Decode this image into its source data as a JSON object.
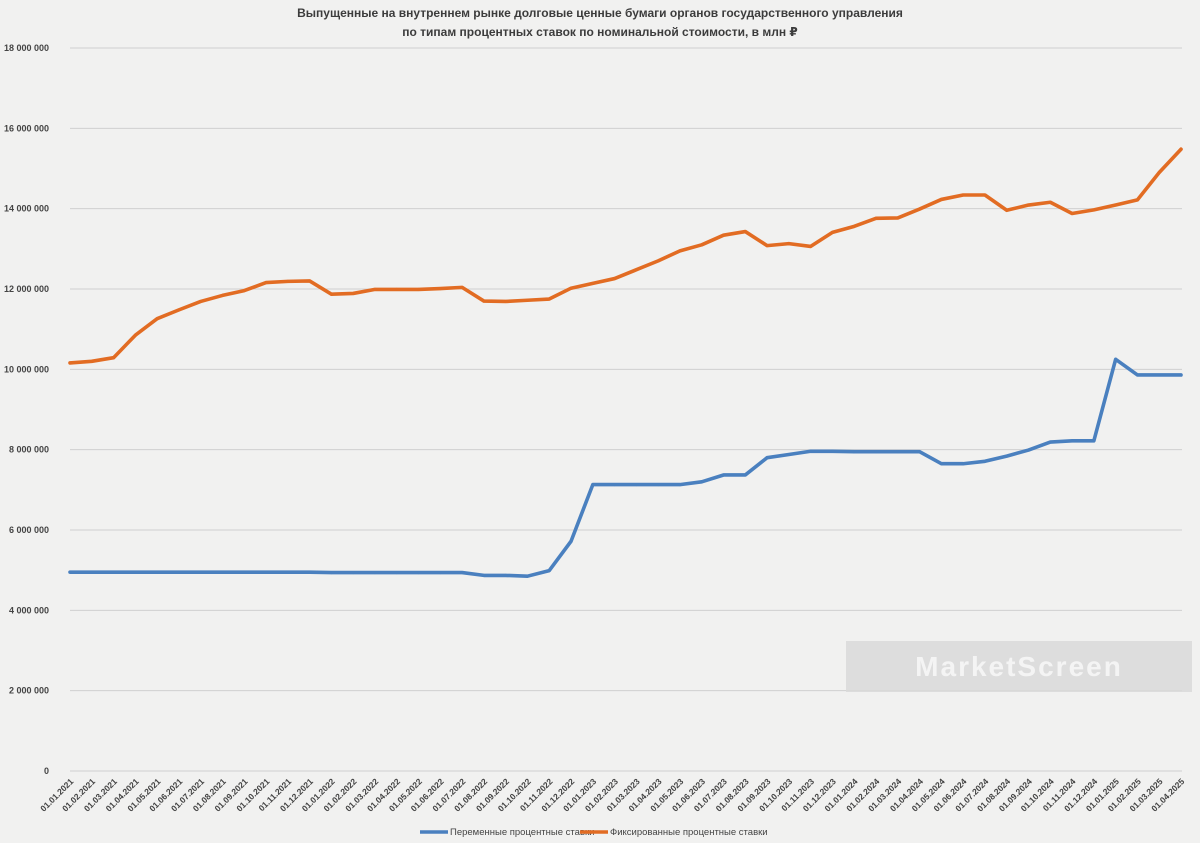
{
  "chart_data": {
    "type": "line",
    "title": "Выпущенные на внутреннем рынке долговые ценные бумаги органов государственного управления",
    "subtitle": "по типам процентных ставок по номинальной стоимости, в млн ₽",
    "xlabel": "",
    "ylabel": "",
    "ylim": [
      0,
      18000000
    ],
    "grid": true,
    "legend_position": "bottom",
    "y_ticks": [
      "0",
      "2 000 000",
      "4 000 000",
      "6 000 000",
      "8 000 000",
      "10 000 000",
      "12 000 000",
      "14 000 000",
      "16 000 000",
      "18 000 000"
    ],
    "categories": [
      "01.01.2021",
      "01.02.2021",
      "01.03.2021",
      "01.04.2021",
      "01.05.2021",
      "01.06.2021",
      "01.07.2021",
      "01.08.2021",
      "01.09.2021",
      "01.10.2021",
      "01.11.2021",
      "01.12.2021",
      "01.01.2022",
      "01.02.2022",
      "01.03.2022",
      "01.04.2022",
      "01.05.2022",
      "01.06.2022",
      "01.07.2022",
      "01.08.2022",
      "01.09.2022",
      "01.10.2022",
      "01.11.2022",
      "01.12.2022",
      "01.01.2023",
      "01.02.2023",
      "01.03.2023",
      "01.04.2023",
      "01.05.2023",
      "01.06.2023",
      "01.07.2023",
      "01.08.2023",
      "01.09.2023",
      "01.10.2023",
      "01.11.2023",
      "01.12.2023",
      "01.01.2024",
      "01.02.2024",
      "01.03.2024",
      "01.04.2024",
      "01.05.2024",
      "01.06.2024",
      "01.07.2024",
      "01.08.2024",
      "01.09.2024",
      "01.10.2024",
      "01.11.2024",
      "01.12.2024",
      "01.01.2025",
      "01.02.2025",
      "01.03.2025",
      "01.04.2025"
    ],
    "series": [
      {
        "name": "Переменные процентные ставки",
        "color": "#4a80bf",
        "values": [
          4950000,
          4950000,
          4950000,
          4950000,
          4950000,
          4950000,
          4950000,
          4950000,
          4950000,
          4950000,
          4950000,
          4950000,
          4940000,
          4940000,
          4940000,
          4940000,
          4940000,
          4940000,
          4940000,
          4870000,
          4870000,
          4850000,
          4990000,
          5720000,
          7130000,
          7130000,
          7130000,
          7130000,
          7130000,
          7200000,
          7370000,
          7370000,
          7800000,
          7880000,
          7960000,
          7960000,
          7950000,
          7950000,
          7950000,
          7950000,
          7650000,
          7650000,
          7710000,
          7840000,
          7990000,
          8190000,
          8220000,
          8220000,
          10250000,
          9860000,
          9860000,
          9860000
        ]
      },
      {
        "name": "Фиксированные процентные ставки",
        "color": "#e26c23",
        "values": [
          10160000,
          10200000,
          10290000,
          10850000,
          11260000,
          11480000,
          11690000,
          11840000,
          11960000,
          12160000,
          12190000,
          12200000,
          11870000,
          11890000,
          11990000,
          11990000,
          11990000,
          12010000,
          12040000,
          11700000,
          11690000,
          11720000,
          11750000,
          12020000,
          12140000,
          12260000,
          12480000,
          12700000,
          12950000,
          13100000,
          13340000,
          13430000,
          13080000,
          13130000,
          13060000,
          13410000,
          13560000,
          13760000,
          13770000,
          13990000,
          14230000,
          14340000,
          14340000,
          13960000,
          14090000,
          14160000,
          13880000,
          13970000,
          14090000,
          14220000,
          14900000,
          15480000
        ]
      }
    ]
  },
  "watermark": {
    "text": "MarketScreen"
  }
}
